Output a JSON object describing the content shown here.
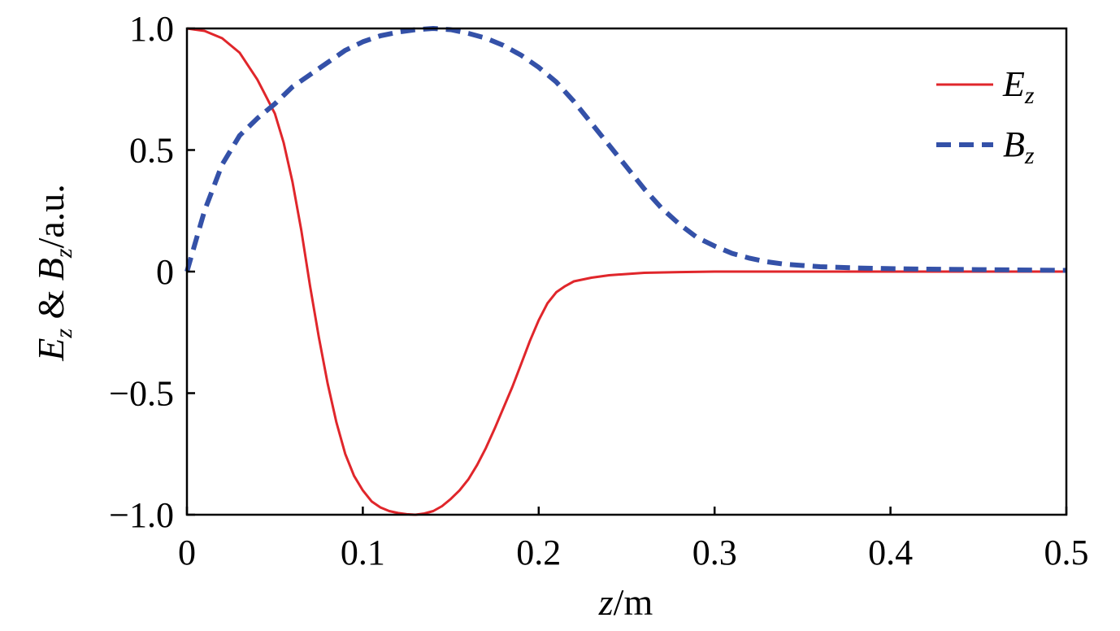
{
  "chart_data": {
    "type": "line",
    "xlabel": {
      "var": "z",
      "unit": "/m"
    },
    "ylabel": {
      "e_var": "E",
      "e_sub": "z",
      "amp": " & ",
      "b_var": "B",
      "b_sub": "z",
      "unit": "/a.u."
    },
    "xlim": [
      0,
      0.5
    ],
    "ylim": [
      -1.0,
      1.0
    ],
    "x_ticks": [
      0,
      0.1,
      0.2,
      0.3,
      0.4,
      0.5
    ],
    "x_tick_labels": [
      "0",
      "0.1",
      "0.2",
      "0.3",
      "0.4",
      "0.5"
    ],
    "y_ticks": [
      1.0,
      0.5,
      0,
      -0.5,
      -1.0
    ],
    "y_tick_labels": [
      "1.0",
      "0.5",
      "0",
      "−0.5",
      "−1.0"
    ],
    "grid": false,
    "legend_position": "top-right",
    "series": [
      {
        "name": "E",
        "name_sub": "z",
        "color": "#e0262b",
        "dash": "solid",
        "x": [
          0,
          0.01,
          0.02,
          0.03,
          0.04,
          0.045,
          0.05,
          0.055,
          0.06,
          0.065,
          0.07,
          0.075,
          0.08,
          0.085,
          0.09,
          0.095,
          0.1,
          0.105,
          0.11,
          0.115,
          0.12,
          0.125,
          0.13,
          0.135,
          0.14,
          0.145,
          0.15,
          0.155,
          0.16,
          0.165,
          0.17,
          0.175,
          0.18,
          0.185,
          0.19,
          0.195,
          0.2,
          0.205,
          0.21,
          0.215,
          0.22,
          0.23,
          0.24,
          0.25,
          0.26,
          0.28,
          0.3,
          0.35,
          0.4,
          0.45,
          0.5
        ],
        "y": [
          1.0,
          0.99,
          0.96,
          0.9,
          0.79,
          0.72,
          0.65,
          0.53,
          0.37,
          0.17,
          -0.06,
          -0.27,
          -0.46,
          -0.62,
          -0.75,
          -0.84,
          -0.9,
          -0.945,
          -0.97,
          -0.985,
          -0.993,
          -0.998,
          -1.0,
          -0.995,
          -0.985,
          -0.965,
          -0.935,
          -0.9,
          -0.855,
          -0.795,
          -0.725,
          -0.645,
          -0.56,
          -0.475,
          -0.38,
          -0.285,
          -0.2,
          -0.13,
          -0.085,
          -0.06,
          -0.04,
          -0.025,
          -0.015,
          -0.01,
          -0.005,
          -0.002,
          0,
          0,
          0,
          0,
          0
        ]
      },
      {
        "name": "B",
        "name_sub": "z",
        "color": "#3451a8",
        "dash": "dashed",
        "x": [
          0,
          0.01,
          0.02,
          0.03,
          0.04,
          0.05,
          0.06,
          0.07,
          0.08,
          0.09,
          0.1,
          0.11,
          0.12,
          0.13,
          0.14,
          0.15,
          0.16,
          0.17,
          0.18,
          0.19,
          0.2,
          0.21,
          0.22,
          0.23,
          0.24,
          0.25,
          0.26,
          0.27,
          0.28,
          0.29,
          0.3,
          0.31,
          0.32,
          0.33,
          0.34,
          0.35,
          0.36,
          0.38,
          0.4,
          0.42,
          0.45,
          0.5
        ],
        "y": [
          0,
          0.25,
          0.44,
          0.56,
          0.63,
          0.69,
          0.76,
          0.81,
          0.86,
          0.91,
          0.945,
          0.97,
          0.985,
          0.995,
          1.0,
          0.995,
          0.98,
          0.96,
          0.93,
          0.89,
          0.84,
          0.78,
          0.7,
          0.61,
          0.52,
          0.43,
          0.34,
          0.26,
          0.195,
          0.14,
          0.105,
          0.075,
          0.055,
          0.04,
          0.03,
          0.025,
          0.02,
          0.015,
          0.012,
          0.01,
          0.008,
          0.005
        ]
      }
    ]
  }
}
